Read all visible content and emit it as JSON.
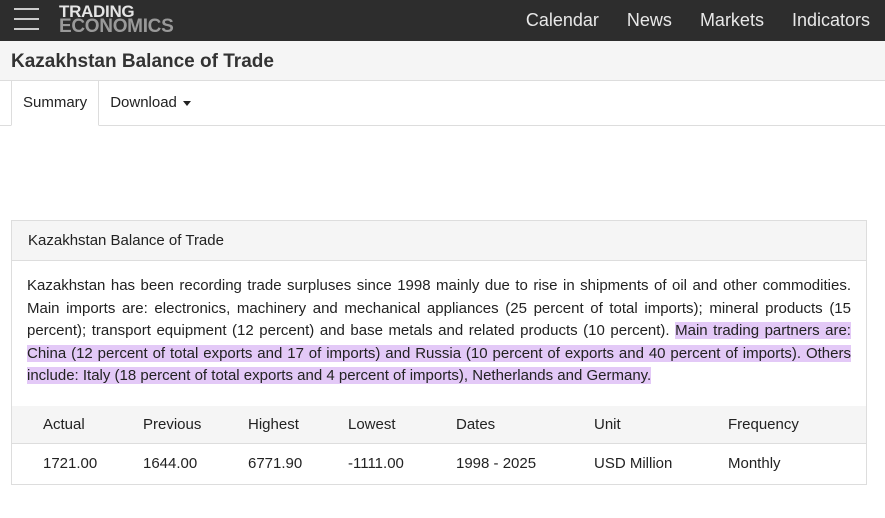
{
  "navbar": {
    "logo_top": "TRADING",
    "logo_bottom": "ECONOMICS",
    "links": [
      "Calendar",
      "News",
      "Markets",
      "Indicators"
    ]
  },
  "header": {
    "title": "Kazakhstan Balance of Trade"
  },
  "tabs": [
    "Summary",
    "Download"
  ],
  "panel": {
    "title": "Kazakhstan Balance of Trade",
    "text": "Kazakhstan has been recording trade surpluses since 1998 mainly due to rise in shipments of oil and other commodities. Main imports are: electronics, machinery and mechanical appliances (25 percent of total imports); mineral products (15 percent); transport equipment (12 percent) and base metals and related products (10 percent). ",
    "highlight": "Main trading partners are: China (12 percent of total exports and 17 of imports) and Russia (10 percent of exports and 40 percent of imports). Others include: Italy (18 percent of total exports and 4 percent of imports), Netherlands and Germany."
  },
  "table": {
    "header": [
      "Actual",
      "Previous",
      "Highest",
      "Lowest",
      "Dates",
      "Unit",
      "Frequency"
    ],
    "rows": [
      [
        "1721.00",
        "1644.00",
        "6771.90",
        "-1111.00",
        "1998 - 2025",
        "USD Million",
        "Monthly"
      ]
    ]
  }
}
